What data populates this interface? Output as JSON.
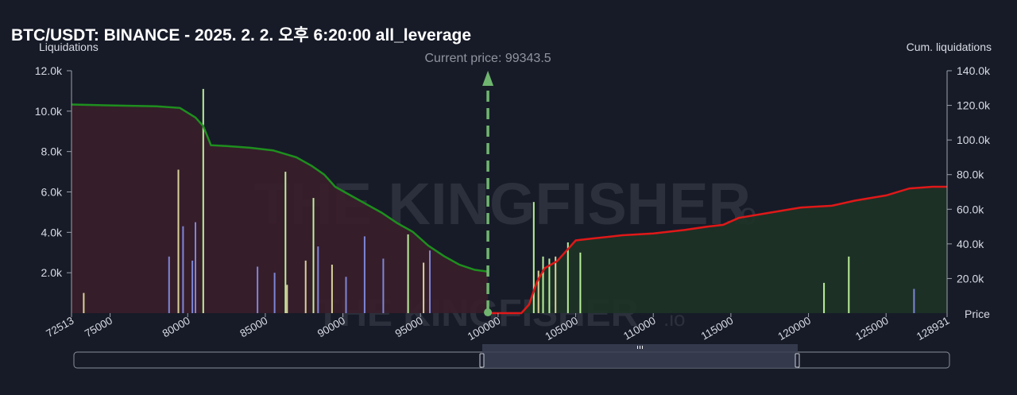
{
  "title": "BTC/USDT: BINANCE - 2025. 2. 2. 오후 6:20:00 all_leverage",
  "watermark": {
    "main": "THE KINGFISHER",
    "suffix": ".io"
  },
  "colors": {
    "background": "#171b28",
    "short_cum_line": "#1e8f1e",
    "long_cum_line": "#e01818",
    "short_fill": "#3a1e2a",
    "long_fill": "#1e3326",
    "bar_yellow": "#d8d29a",
    "bar_green": "#b9f09a",
    "bar_blue": "#7d86d6",
    "current_price": "#6fb56f"
  },
  "chart_data": {
    "type": "bar",
    "left_axis_label": "Liquidations",
    "right_axis_label": "Cum. liquidations",
    "x_axis_label": "Price",
    "xlim": [
      72513,
      128931
    ],
    "ylim_left": [
      0,
      12000
    ],
    "ylim_right": [
      0,
      140000
    ],
    "x_ticks": [
      {
        "value": 72513,
        "label": "72513"
      },
      {
        "value": 75000,
        "label": "75000"
      },
      {
        "value": 80000,
        "label": "80000"
      },
      {
        "value": 85000,
        "label": "85000"
      },
      {
        "value": 90000,
        "label": "90000"
      },
      {
        "value": 95000,
        "label": "95000"
      },
      {
        "value": 100000,
        "label": "100000"
      },
      {
        "value": 105000,
        "label": "105000"
      },
      {
        "value": 110000,
        "label": "110000"
      },
      {
        "value": 115000,
        "label": "115000"
      },
      {
        "value": 120000,
        "label": "120000"
      },
      {
        "value": 125000,
        "label": "125000"
      },
      {
        "value": 128931,
        "label": "128931"
      }
    ],
    "y_left_ticks": [
      {
        "value": 2000,
        "label": "2.0k"
      },
      {
        "value": 4000,
        "label": "4.0k"
      },
      {
        "value": 6000,
        "label": "6.0k"
      },
      {
        "value": 8000,
        "label": "8.0k"
      },
      {
        "value": 10000,
        "label": "10.0k"
      },
      {
        "value": 12000,
        "label": "12.0k"
      }
    ],
    "y_right_ticks": [
      {
        "value": 20000,
        "label": "20.0k"
      },
      {
        "value": 40000,
        "label": "40.0k"
      },
      {
        "value": 60000,
        "label": "60.0k"
      },
      {
        "value": 80000,
        "label": "80.0k"
      },
      {
        "value": 100000,
        "label": "100.0k"
      },
      {
        "value": 120000,
        "label": "120.0k"
      },
      {
        "value": 140000,
        "label": "140.0k"
      }
    ],
    "current_price": {
      "value": 99343.5,
      "label": "Current price: 99343.5"
    },
    "short_cumulative": [
      [
        72513,
        120500
      ],
      [
        75000,
        120000
      ],
      [
        78000,
        119500
      ],
      [
        79500,
        118500
      ],
      [
        80500,
        113000
      ],
      [
        81000,
        108000
      ],
      [
        81500,
        97000
      ],
      [
        82500,
        96500
      ],
      [
        84000,
        95500
      ],
      [
        85500,
        94000
      ],
      [
        87000,
        90000
      ],
      [
        88000,
        85000
      ],
      [
        88800,
        80000
      ],
      [
        89500,
        73000
      ],
      [
        90500,
        68000
      ],
      [
        91500,
        63000
      ],
      [
        92500,
        58000
      ],
      [
        93500,
        52000
      ],
      [
        94500,
        47000
      ],
      [
        95500,
        39000
      ],
      [
        96500,
        33000
      ],
      [
        97500,
        28000
      ],
      [
        98500,
        25000
      ],
      [
        99343.5,
        24000
      ]
    ],
    "long_cumulative": [
      [
        99343.5,
        0
      ],
      [
        101500,
        0
      ],
      [
        102000,
        5000
      ],
      [
        102500,
        18000
      ],
      [
        103000,
        26000
      ],
      [
        103800,
        30000
      ],
      [
        104500,
        37000
      ],
      [
        105000,
        42000
      ],
      [
        106000,
        43000
      ],
      [
        108000,
        45000
      ],
      [
        110000,
        46000
      ],
      [
        112000,
        48000
      ],
      [
        113500,
        50000
      ],
      [
        114500,
        51000
      ],
      [
        115500,
        55000
      ],
      [
        117500,
        58000
      ],
      [
        119500,
        61000
      ],
      [
        121500,
        62000
      ],
      [
        123000,
        65000
      ],
      [
        125000,
        68000
      ],
      [
        126500,
        72000
      ],
      [
        128000,
        73000
      ],
      [
        128931,
        73000
      ]
    ],
    "bars_major": [
      {
        "x": 73300,
        "y": 1000,
        "color": "yellow"
      },
      {
        "x": 78800,
        "y": 2800,
        "color": "blue"
      },
      {
        "x": 79400,
        "y": 7100,
        "color": "yellow"
      },
      {
        "x": 79700,
        "y": 4300,
        "color": "blue"
      },
      {
        "x": 80300,
        "y": 2600,
        "color": "blue"
      },
      {
        "x": 80500,
        "y": 4500,
        "color": "blue"
      },
      {
        "x": 81000,
        "y": 11100,
        "color": "green"
      },
      {
        "x": 84500,
        "y": 2300,
        "color": "blue"
      },
      {
        "x": 85600,
        "y": 2000,
        "color": "blue"
      },
      {
        "x": 86300,
        "y": 7000,
        "color": "green"
      },
      {
        "x": 86400,
        "y": 1400,
        "color": "yellow"
      },
      {
        "x": 87600,
        "y": 2600,
        "color": "yellow"
      },
      {
        "x": 88100,
        "y": 5700,
        "color": "green"
      },
      {
        "x": 88400,
        "y": 3300,
        "color": "blue"
      },
      {
        "x": 89300,
        "y": 2400,
        "color": "yellow"
      },
      {
        "x": 90200,
        "y": 1800,
        "color": "blue"
      },
      {
        "x": 91400,
        "y": 3800,
        "color": "blue"
      },
      {
        "x": 92600,
        "y": 2700,
        "color": "blue"
      },
      {
        "x": 94200,
        "y": 3900,
        "color": "green"
      },
      {
        "x": 95200,
        "y": 2500,
        "color": "yellow"
      },
      {
        "x": 95600,
        "y": 3100,
        "color": "blue"
      },
      {
        "x": 102300,
        "y": 5500,
        "color": "green"
      },
      {
        "x": 102600,
        "y": 2100,
        "color": "yellow"
      },
      {
        "x": 102900,
        "y": 2800,
        "color": "green"
      },
      {
        "x": 103300,
        "y": 2700,
        "color": "green"
      },
      {
        "x": 103700,
        "y": 2800,
        "color": "yellow"
      },
      {
        "x": 104500,
        "y": 3500,
        "color": "green"
      },
      {
        "x": 105300,
        "y": 3000,
        "color": "green"
      },
      {
        "x": 121000,
        "y": 1500,
        "color": "green"
      },
      {
        "x": 122600,
        "y": 2800,
        "color": "green"
      },
      {
        "x": 126800,
        "y": 1200,
        "color": "blue"
      }
    ]
  }
}
